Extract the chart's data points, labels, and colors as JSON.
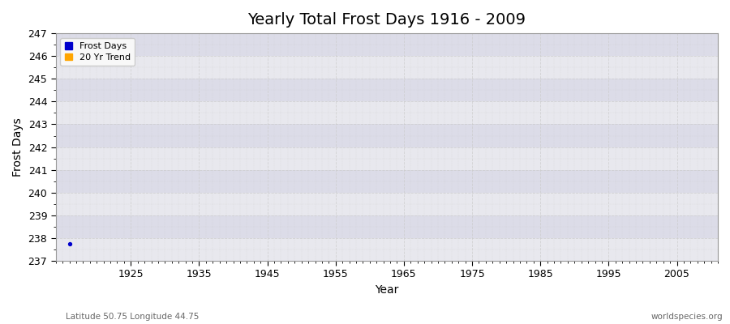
{
  "title": "Yearly Total Frost Days 1916 - 2009",
  "xlabel": "Year",
  "ylabel": "Frost Days",
  "xlim": [
    1914,
    2011
  ],
  "ylim": [
    237,
    247
  ],
  "yticks": [
    237,
    238,
    239,
    240,
    241,
    242,
    243,
    244,
    245,
    246,
    247
  ],
  "xticks": [
    1925,
    1935,
    1945,
    1955,
    1965,
    1975,
    1985,
    1995,
    2005
  ],
  "data_point_x": 1916,
  "data_point_y": 237.75,
  "data_point_color": "#0000cc",
  "fig_bg_color": "#f0f0f0",
  "plot_bg_color": "#ebebeb",
  "band_color_light": "#e8e8e8",
  "band_color_dark": "#dcdcdc",
  "grid_major_color": "#ffffff",
  "grid_minor_color": "#d8d8d8",
  "legend_frost_color": "#0000cc",
  "legend_trend_color": "#ffa500",
  "subtitle_left": "Latitude 50.75 Longitude 44.75",
  "subtitle_right": "worldspecies.org",
  "title_fontsize": 14,
  "tick_fontsize": 9,
  "label_fontsize": 10
}
